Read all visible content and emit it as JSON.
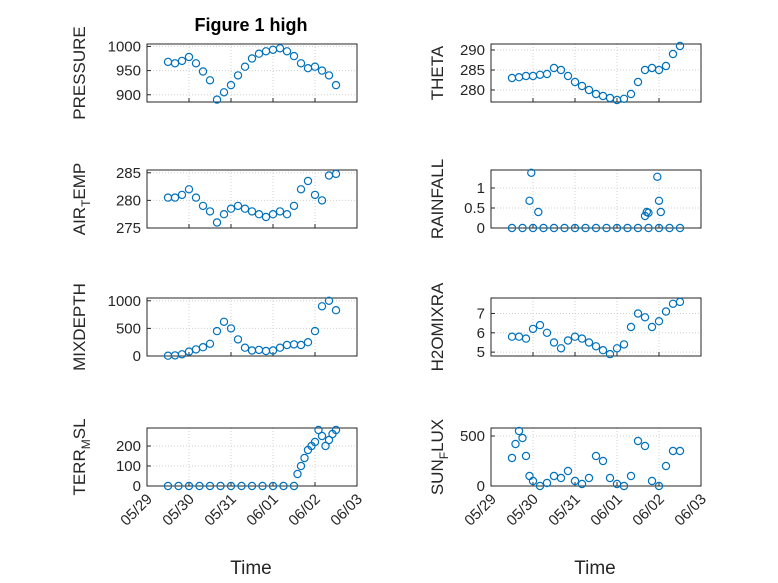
{
  "chart_data": [
    {
      "type": "scatter",
      "title": "Figure 1 high",
      "ylabel": "PRESSURE",
      "xlim": [
        "05/29",
        "06/03"
      ],
      "ylim": [
        885,
        1005
      ],
      "yticks": [
        900,
        950,
        1000
      ],
      "grid": true,
      "color": "#0072BD",
      "x": [
        "05/29 12:00",
        "05/29 16:00",
        "05/29 20:00",
        "05/30 00:00",
        "05/30 04:00",
        "05/30 08:00",
        "05/30 12:00",
        "05/30 16:00",
        "05/30 20:00",
        "05/31 00:00",
        "05/31 04:00",
        "05/31 08:00",
        "05/31 12:00",
        "05/31 16:00",
        "05/31 20:00",
        "06/01 00:00",
        "06/01 04:00",
        "06/01 08:00",
        "06/01 12:00",
        "06/01 16:00",
        "06/01 20:00",
        "06/02 00:00",
        "06/02 04:00",
        "06/02 08:00",
        "06/02 12:00"
      ],
      "y": [
        968,
        965,
        970,
        978,
        965,
        948,
        930,
        890,
        905,
        920,
        940,
        958,
        975,
        985,
        990,
        993,
        996,
        990,
        980,
        965,
        955,
        958,
        950,
        940,
        920
      ]
    },
    {
      "type": "scatter",
      "title": "",
      "ylabel": "THETA",
      "xlim": [
        "05/29",
        "06/03"
      ],
      "ylim": [
        277,
        291.5
      ],
      "yticks": [
        280,
        285,
        290
      ],
      "grid": true,
      "color": "#0072BD",
      "x": [
        "05/29 12:00",
        "05/29 16:00",
        "05/29 20:00",
        "05/30 00:00",
        "05/30 04:00",
        "05/30 08:00",
        "05/30 12:00",
        "05/30 16:00",
        "05/30 20:00",
        "05/31 00:00",
        "05/31 04:00",
        "05/31 08:00",
        "05/31 12:00",
        "05/31 16:00",
        "05/31 20:00",
        "06/01 00:00",
        "06/01 04:00",
        "06/01 08:00",
        "06/01 12:00",
        "06/01 16:00",
        "06/01 20:00",
        "06/02 00:00",
        "06/02 04:00",
        "06/02 08:00",
        "06/02 12:00"
      ],
      "y": [
        283,
        283.2,
        283.5,
        283.5,
        283.8,
        284,
        285.5,
        285,
        283.5,
        282,
        281,
        280,
        279,
        278.5,
        278,
        277.5,
        277.8,
        279,
        282,
        285,
        285.5,
        285,
        286,
        289,
        291
      ]
    },
    {
      "type": "scatter",
      "title": "",
      "ylabel": "AIR_TEMP",
      "ylabel_main": "AIR",
      "ylabel_sub": "T",
      "ylabel_tail": "EMP",
      "xlim": [
        "05/29",
        "06/03"
      ],
      "ylim": [
        275,
        285.5
      ],
      "yticks": [
        275,
        280,
        285
      ],
      "grid": true,
      "color": "#0072BD",
      "x": [
        "05/29 12:00",
        "05/29 16:00",
        "05/29 20:00",
        "05/30 00:00",
        "05/30 04:00",
        "05/30 08:00",
        "05/30 12:00",
        "05/30 16:00",
        "05/30 20:00",
        "05/31 00:00",
        "05/31 04:00",
        "05/31 08:00",
        "05/31 12:00",
        "05/31 16:00",
        "05/31 20:00",
        "06/01 00:00",
        "06/01 04:00",
        "06/01 08:00",
        "06/01 12:00",
        "06/01 16:00",
        "06/01 20:00",
        "06/02 00:00",
        "06/02 04:00",
        "06/02 08:00",
        "06/02 12:00"
      ],
      "y": [
        280.5,
        280.5,
        281,
        282,
        280.5,
        279,
        278,
        276,
        277.5,
        278.5,
        279,
        278.5,
        278,
        277.5,
        277,
        277.5,
        278,
        277.5,
        279,
        282,
        283.5,
        281,
        280,
        284.5,
        284.8
      ]
    },
    {
      "type": "scatter",
      "title": "",
      "ylabel": "RAINFALL",
      "xlim": [
        "05/29",
        "06/03"
      ],
      "ylim": [
        0,
        1.45
      ],
      "yticks": [
        0,
        0.5,
        1
      ],
      "grid": true,
      "color": "#0072BD",
      "x": [
        "05/29 12:00",
        "05/29 18:00",
        "05/30 00:00",
        "05/30 06:00",
        "05/30 12:00",
        "05/30 18:00",
        "05/31 00:00",
        "05/31 06:00",
        "05/31 12:00",
        "05/31 18:00",
        "06/01 00:00",
        "06/01 06:00",
        "06/01 12:00",
        "06/01 18:00",
        "06/02 00:00",
        "06/02 06:00",
        "06/02 12:00",
        "05/29 22:00",
        "05/29 23:00",
        "05/30 03:00",
        "06/01 16:00",
        "06/01 17:00",
        "06/01 18:00",
        "06/01 23:00",
        "06/02 00:00",
        "06/02 01:00"
      ],
      "y": [
        0,
        0,
        0,
        0,
        0,
        0,
        0,
        0,
        0,
        0,
        0,
        0,
        0,
        0,
        0,
        0,
        0,
        0.68,
        1.38,
        0.4,
        0.3,
        0.4,
        0.38,
        1.28,
        0.68,
        0.4
      ]
    },
    {
      "type": "scatter",
      "title": "",
      "ylabel": "MIXDEPTH",
      "xlim": [
        "05/29",
        "06/03"
      ],
      "ylim": [
        0,
        1050
      ],
      "yticks": [
        0,
        500,
        1000
      ],
      "grid": true,
      "color": "#0072BD",
      "x": [
        "05/29 12:00",
        "05/29 16:00",
        "05/29 20:00",
        "05/30 00:00",
        "05/30 04:00",
        "05/30 08:00",
        "05/30 12:00",
        "05/30 16:00",
        "05/30 20:00",
        "05/31 00:00",
        "05/31 04:00",
        "05/31 08:00",
        "05/31 12:00",
        "05/31 16:00",
        "05/31 20:00",
        "06/01 00:00",
        "06/01 04:00",
        "06/01 08:00",
        "06/01 12:00",
        "06/01 16:00",
        "06/01 20:00",
        "06/02 00:00",
        "06/02 04:00",
        "06/02 08:00",
        "06/02 12:00"
      ],
      "y": [
        5,
        10,
        30,
        80,
        120,
        160,
        220,
        450,
        620,
        500,
        300,
        150,
        100,
        110,
        90,
        100,
        150,
        200,
        210,
        200,
        250,
        450,
        900,
        1000,
        830
      ]
    },
    {
      "type": "scatter",
      "title": "",
      "ylabel": "H2OMIXRA",
      "xlim": [
        "05/29",
        "06/03"
      ],
      "ylim": [
        4.8,
        7.8
      ],
      "yticks": [
        5,
        6,
        7
      ],
      "grid": true,
      "color": "#0072BD",
      "x": [
        "05/29 12:00",
        "05/29 16:00",
        "05/29 20:00",
        "05/30 00:00",
        "05/30 04:00",
        "05/30 08:00",
        "05/30 12:00",
        "05/30 16:00",
        "05/30 20:00",
        "05/31 00:00",
        "05/31 04:00",
        "05/31 08:00",
        "05/31 12:00",
        "05/31 16:00",
        "05/31 20:00",
        "06/01 00:00",
        "06/01 04:00",
        "06/01 08:00",
        "06/01 12:00",
        "06/01 16:00",
        "06/01 20:00",
        "06/02 00:00",
        "06/02 04:00",
        "06/02 08:00",
        "06/02 12:00"
      ],
      "y": [
        5.8,
        5.8,
        5.7,
        6.2,
        6.4,
        6,
        5.5,
        5.2,
        5.6,
        5.8,
        5.7,
        5.5,
        5.3,
        5.1,
        4.9,
        5.2,
        5.4,
        6.3,
        7,
        6.8,
        6.3,
        6.6,
        7.1,
        7.5,
        7.6
      ]
    },
    {
      "type": "scatter",
      "title": "",
      "ylabel": "TERR_MSL",
      "ylabel_main": "TERR",
      "ylabel_sub": "M",
      "ylabel_tail": "SL",
      "xlim": [
        "05/29",
        "06/03"
      ],
      "ylim": [
        0,
        290
      ],
      "yticks": [
        0,
        100,
        200
      ],
      "grid": true,
      "color": "#0072BD",
      "x": [
        "05/29 12:00",
        "05/29 18:00",
        "05/30 00:00",
        "05/30 06:00",
        "05/30 12:00",
        "05/30 18:00",
        "05/31 00:00",
        "05/31 06:00",
        "05/31 12:00",
        "05/31 18:00",
        "06/01 00:00",
        "06/01 06:00",
        "06/01 12:00",
        "06/01 14:00",
        "06/01 16:00",
        "06/01 18:00",
        "06/01 20:00",
        "06/01 22:00",
        "06/02 00:00",
        "06/02 02:00",
        "06/02 04:00",
        "06/02 06:00",
        "06/02 08:00",
        "06/02 10:00",
        "06/02 12:00"
      ],
      "y": [
        0,
        0,
        0,
        0,
        0,
        0,
        0,
        0,
        0,
        0,
        0,
        0,
        0,
        60,
        100,
        140,
        180,
        200,
        220,
        280,
        250,
        200,
        230,
        260,
        280
      ]
    },
    {
      "type": "scatter",
      "title": "",
      "ylabel": "SUN_FLUX",
      "ylabel_main": "SUN",
      "ylabel_sub": "F",
      "ylabel_tail": "LUX",
      "xlim": [
        "05/29",
        "06/03"
      ],
      "ylim": [
        0,
        580
      ],
      "yticks": [
        0,
        500
      ],
      "grid": true,
      "color": "#0072BD",
      "x": [
        "05/29 12:00",
        "05/29 14:00",
        "05/29 16:00",
        "05/29 18:00",
        "05/29 20:00",
        "05/29 22:00",
        "05/30 00:00",
        "05/30 04:00",
        "05/30 08:00",
        "05/30 12:00",
        "05/30 16:00",
        "05/30 20:00",
        "05/31 00:00",
        "05/31 04:00",
        "05/31 08:00",
        "05/31 12:00",
        "05/31 16:00",
        "05/31 20:00",
        "06/01 00:00",
        "06/01 04:00",
        "06/01 08:00",
        "06/01 12:00",
        "06/01 16:00",
        "06/01 20:00",
        "06/02 00:00",
        "06/02 04:00",
        "06/02 08:00",
        "06/02 12:00"
      ],
      "y": [
        280,
        420,
        550,
        480,
        300,
        100,
        50,
        0,
        30,
        100,
        80,
        150,
        50,
        20,
        80,
        300,
        250,
        80,
        20,
        0,
        100,
        450,
        400,
        50,
        0,
        200,
        350,
        350
      ]
    }
  ],
  "shared_x": {
    "label": "Time",
    "ticks": [
      "05/29",
      "05/30",
      "05/31",
      "06/01",
      "06/02",
      "06/03"
    ]
  }
}
